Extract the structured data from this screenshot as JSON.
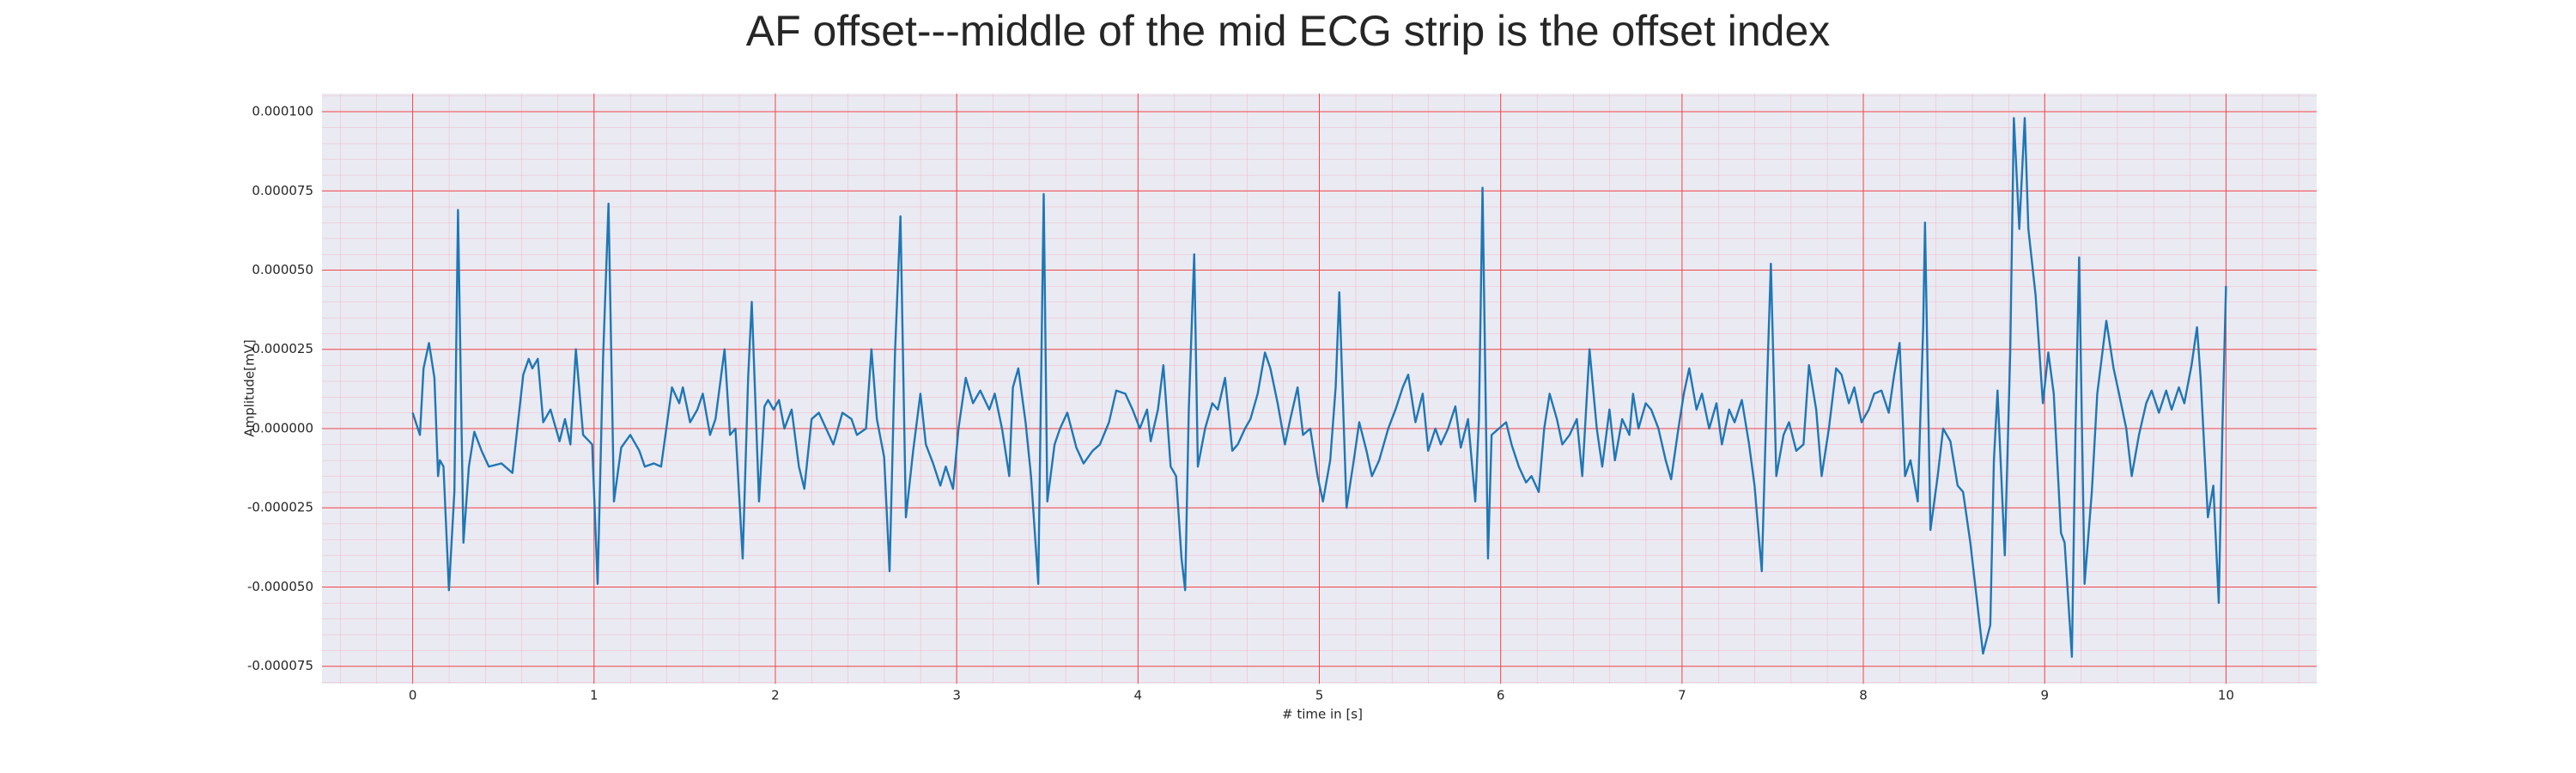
{
  "chart_data": {
    "type": "line",
    "title": "AF offset---middle of the mid ECG strip is the offset index",
    "xlabel": "# time in [s]",
    "ylabel": "Amplitude[mV]",
    "color": "#1f77b4",
    "grid": true,
    "minor_grid": true,
    "xlim": [
      -0.5,
      10.5
    ],
    "ylim": [
      -8.05e-05,
      0.0001057
    ],
    "xticks": [
      0,
      1,
      2,
      3,
      4,
      5,
      6,
      7,
      8,
      9,
      10
    ],
    "yticks": [
      -7.5e-05,
      {
        "value": -5e-05,
        "label": "-0.000050"
      },
      -2.5e-05,
      {
        "value": 0,
        "label": "0.000000"
      },
      2.5e-05,
      {
        "value": 5e-05,
        "label": "0.000050"
      },
      7.5e-05,
      {
        "value": 0.0001,
        "label": "0.000100"
      }
    ],
    "x": [
      0,
      0.04,
      0.06,
      0.09,
      0.12,
      0.14,
      0.15,
      0.17,
      0.2,
      0.23,
      0.25,
      0.28,
      0.31,
      0.34,
      0.38,
      0.42,
      0.49,
      0.55,
      0.61,
      0.64,
      0.66,
      0.69,
      0.72,
      0.76,
      0.81,
      0.84,
      0.87,
      0.9,
      0.94,
      0.99,
      1.02,
      1.05,
      1.08,
      1.11,
      1.15,
      1.2,
      1.25,
      1.28,
      1.33,
      1.37,
      1.43,
      1.47,
      1.49,
      1.53,
      1.57,
      1.6,
      1.64,
      1.67,
      1.72,
      1.75,
      1.78,
      1.82,
      1.85,
      1.87,
      1.91,
      1.94,
      1.96,
      1.99,
      2.02,
      2.05,
      2.09,
      2.13,
      2.16,
      2.2,
      2.24,
      2.28,
      2.32,
      2.37,
      2.42,
      2.45,
      2.5,
      2.53,
      2.56,
      2.6,
      2.63,
      2.66,
      2.69,
      2.72,
      2.76,
      2.8,
      2.83,
      2.87,
      2.91,
      2.94,
      2.98,
      3.01,
      3.05,
      3.09,
      3.13,
      3.18,
      3.21,
      3.25,
      3.29,
      3.31,
      3.34,
      3.38,
      3.41,
      3.45,
      3.48,
      3.5,
      3.54,
      3.57,
      3.61,
      3.66,
      3.7,
      3.75,
      3.79,
      3.84,
      3.88,
      3.93,
      3.97,
      4.01,
      4.05,
      4.07,
      4.11,
      4.14,
      4.18,
      4.21,
      4.24,
      4.26,
      4.28,
      4.31,
      4.33,
      4.37,
      4.41,
      4.44,
      4.48,
      4.52,
      4.55,
      4.59,
      4.62,
      4.66,
      4.7,
      4.73,
      4.77,
      4.81,
      4.84,
      4.88,
      4.91,
      4.95,
      4.99,
      5.02,
      5.06,
      5.09,
      5.11,
      5.15,
      5.19,
      5.22,
      5.26,
      5.29,
      5.33,
      5.38,
      5.42,
      5.46,
      5.49,
      5.53,
      5.57,
      5.6,
      5.64,
      5.67,
      5.71,
      5.75,
      5.78,
      5.82,
      5.86,
      5.88,
      5.9,
      5.93,
      5.95,
      5.99,
      6.03,
      6.06,
      6.1,
      6.14,
      6.17,
      6.21,
      6.24,
      6.27,
      6.31,
      6.34,
      6.38,
      6.42,
      6.45,
      6.49,
      6.53,
      6.56,
      6.6,
      6.63,
      6.67,
      6.71,
      6.73,
      6.76,
      6.8,
      6.83,
      6.87,
      6.91,
      6.94,
      6.98,
      7.01,
      7.04,
      7.08,
      7.11,
      7.15,
      7.19,
      7.22,
      7.26,
      7.29,
      7.33,
      7.37,
      7.4,
      7.44,
      7.47,
      7.49,
      7.52,
      7.56,
      7.59,
      7.63,
      7.67,
      7.7,
      7.74,
      7.77,
      7.81,
      7.85,
      7.88,
      7.92,
      7.95,
      7.99,
      8.03,
      8.06,
      8.1,
      8.14,
      8.17,
      8.2,
      8.23,
      8.26,
      8.3,
      8.33,
      8.34,
      8.37,
      8.41,
      8.44,
      8.48,
      8.52,
      8.55,
      8.59,
      8.62,
      8.66,
      8.7,
      8.72,
      8.74,
      8.78,
      8.81,
      8.83,
      8.86,
      8.89,
      8.91,
      8.95,
      8.99,
      9.02,
      9.05,
      9.09,
      9.11,
      9.15,
      9.17,
      9.19,
      9.22,
      9.26,
      9.29,
      9.34,
      9.38,
      9.41,
      9.45,
      9.48,
      9.52,
      9.56,
      9.59,
      9.63,
      9.67,
      9.7,
      9.74,
      9.77,
      9.81,
      9.84,
      9.86,
      9.9,
      9.93,
      9.96,
      9.98,
      10
    ],
    "values": [
      5e-06,
      -2e-06,
      1.9e-05,
      2.7e-05,
      1.6e-05,
      -1.5e-05,
      -1e-05,
      -1.2e-05,
      -5.1e-05,
      -2e-05,
      6.9e-05,
      -3.6e-05,
      -1.2e-05,
      -1e-06,
      -7e-06,
      -1.2e-05,
      -1.1e-05,
      -1.4e-05,
      1.7e-05,
      2.2e-05,
      1.9e-05,
      2.2e-05,
      2e-06,
      6e-06,
      -4e-06,
      3e-06,
      -5e-06,
      2.5e-05,
      -2e-06,
      -5e-06,
      -4.9e-05,
      2.2e-05,
      7.1e-05,
      -2.3e-05,
      -6e-06,
      -2e-06,
      -7e-06,
      -1.2e-05,
      -1.1e-05,
      -1.2e-05,
      1.3e-05,
      8e-06,
      1.3e-05,
      2e-06,
      6e-06,
      1.1e-05,
      -2e-06,
      3e-06,
      2.5e-05,
      -2e-06,
      0,
      -4.1e-05,
      1.6e-05,
      4e-05,
      -2.3e-05,
      7e-06,
      9e-06,
      6e-06,
      9e-06,
      0,
      6e-06,
      -1.2e-05,
      -1.9e-05,
      3e-06,
      5e-06,
      0,
      -5e-06,
      5e-06,
      3e-06,
      -2e-06,
      0,
      2.5e-05,
      3e-06,
      -9e-06,
      -4.5e-05,
      2.4e-05,
      6.7e-05,
      -2.8e-05,
      -7e-06,
      1.1e-05,
      -5e-06,
      -1.1e-05,
      -1.8e-05,
      -1.2e-05,
      -1.9e-05,
      0,
      1.6e-05,
      8e-06,
      1.2e-05,
      6e-06,
      1.1e-05,
      0,
      -1.5e-05,
      1.3e-05,
      1.9e-05,
      2e-06,
      -1.5e-05,
      -4.9e-05,
      7.4e-05,
      -2.3e-05,
      -5e-06,
      0,
      5e-06,
      -6e-06,
      -1.1e-05,
      -7e-06,
      -5e-06,
      2e-06,
      1.2e-05,
      1.1e-05,
      6e-06,
      0,
      6e-06,
      -4e-06,
      6e-06,
      2e-05,
      -1.2e-05,
      -1.5e-05,
      -4.1e-05,
      -5.1e-05,
      6e-06,
      5.5e-05,
      -1.2e-05,
      0,
      8e-06,
      6e-06,
      1.6e-05,
      -7e-06,
      -5e-06,
      0,
      3e-06,
      1.1e-05,
      2.4e-05,
      1.9e-05,
      8e-06,
      -5e-06,
      3e-06,
      1.3e-05,
      -2e-06,
      0,
      -1.5e-05,
      -2.3e-05,
      -1e-05,
      1.3e-05,
      4.3e-05,
      -2.5e-05,
      -1e-05,
      2e-06,
      -7e-06,
      -1.5e-05,
      -1e-05,
      0,
      6e-06,
      1.3e-05,
      1.7e-05,
      2e-06,
      1.1e-05,
      -7e-06,
      0,
      -5e-06,
      0,
      7e-06,
      -6e-06,
      3e-06,
      -2.3e-05,
      3e-06,
      7.6e-05,
      -4.1e-05,
      -2e-06,
      0,
      2e-06,
      -5e-06,
      -1.2e-05,
      -1.7e-05,
      -1.5e-05,
      -2e-05,
      0,
      1.1e-05,
      3e-06,
      -5e-06,
      -2e-06,
      3e-06,
      -1.5e-05,
      2.5e-05,
      0,
      -1.2e-05,
      6e-06,
      -1e-05,
      3e-06,
      -2e-06,
      1.1e-05,
      0,
      8e-06,
      6e-06,
      0,
      -1e-05,
      -1.6e-05,
      0,
      1.1e-05,
      1.9e-05,
      6e-06,
      1.1e-05,
      0,
      8e-06,
      -5e-06,
      6e-06,
      2e-06,
      9e-06,
      -5e-06,
      -1.8e-05,
      -4.5e-05,
      1.6e-05,
      5.2e-05,
      -1.5e-05,
      -2e-06,
      2e-06,
      -7e-06,
      -5e-06,
      2e-05,
      6e-06,
      -1.5e-05,
      0,
      1.9e-05,
      1.7e-05,
      8e-06,
      1.3e-05,
      2e-06,
      6e-06,
      1.1e-05,
      1.2e-05,
      5e-06,
      1.7e-05,
      2.7e-05,
      -1.5e-05,
      -1e-05,
      -2.3e-05,
      3.2e-05,
      6.5e-05,
      -3.2e-05,
      -1.5e-05,
      0,
      -4e-06,
      -1.8e-05,
      -2e-05,
      -3.6e-05,
      -5.1e-05,
      -7.1e-05,
      -6.2e-05,
      -1e-05,
      1.2e-05,
      -4e-05,
      2.4e-05,
      9.8e-05,
      6.3e-05,
      9.8e-05,
      6.3e-05,
      4.2e-05,
      8e-06,
      2.4e-05,
      1.1e-05,
      -3.3e-05,
      -3.6e-05,
      -7.2e-05,
      0,
      5.4e-05,
      -4.9e-05,
      -2e-05,
      1.1e-05,
      3.4e-05,
      1.9e-05,
      1.1e-05,
      0,
      -1.5e-05,
      -2e-06,
      8e-06,
      1.2e-05,
      5e-06,
      1.2e-05,
      6e-06,
      1.3e-05,
      8e-06,
      2e-05,
      3.2e-05,
      1.6e-05,
      -2.8e-05,
      -1.8e-05,
      -5.5e-05,
      0,
      4.5e-05
    ]
  }
}
